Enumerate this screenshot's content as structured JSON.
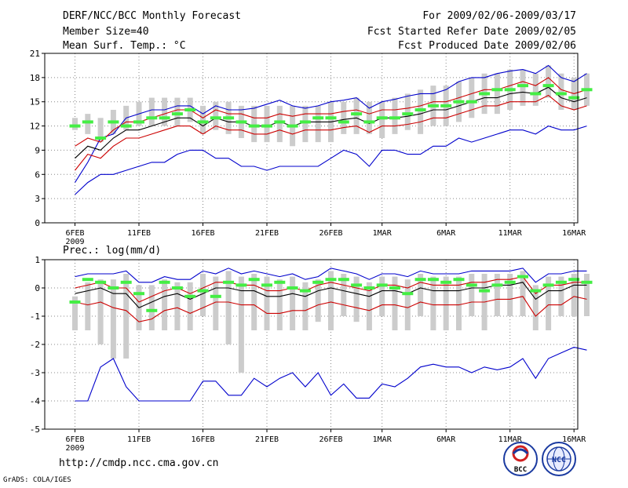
{
  "header": {
    "title": "DERF/NCC/BCC Monthly Forecast",
    "member_size": "Member Size=40",
    "for_range": "For 2009/02/06-2009/03/17",
    "started": "Fcst Started Refer Date 2009/02/05",
    "produced": "Fcst Produced Date 2009/02/06"
  },
  "footer": {
    "url": "http://cmdp.ncc.cma.gov.cn",
    "credit": "GrADS: COLA/IGES",
    "logo_left_text": "BCC",
    "logo_right_text": "NCC"
  },
  "colors": {
    "max_min": "#0000cc",
    "spread": "#cc0000",
    "mean": "#000000",
    "box": "#cccccc",
    "median": "#44ee44",
    "grid": "#888888"
  },
  "chart_data": [
    {
      "type": "line",
      "title": "Mean Surf. Temp.: °C",
      "xlabel": "",
      "ylabel": "",
      "ylim": [
        0,
        21
      ],
      "yticks": [
        0,
        3,
        6,
        9,
        12,
        15,
        18,
        21
      ],
      "x_tick_labels": [
        "6FEB",
        "11FEB",
        "16FEB",
        "21FEB",
        "26FEB",
        "1MAR",
        "6MAR",
        "11MAR",
        "16MAR"
      ],
      "x_tick_days": [
        0,
        5,
        10,
        15,
        20,
        24,
        29,
        34,
        39
      ],
      "x_sublabel": "2009",
      "grid": true,
      "days": 40,
      "series": [
        {
          "name": "max",
          "values": [
            5,
            7.5,
            10.5,
            11,
            13,
            13.5,
            14,
            14,
            14.5,
            14.5,
            13.5,
            14.5,
            14,
            14,
            14.2,
            14.7,
            15.2,
            14.5,
            14.2,
            14.5,
            15,
            15.2,
            15.5,
            14.2,
            15,
            15.3,
            15.7,
            16,
            16,
            16.5,
            17.5,
            18,
            18,
            18.5,
            18.8,
            19,
            18.5,
            19.5,
            18,
            17.5,
            18.5
          ]
        },
        {
          "name": "upper",
          "values": [
            9.5,
            10.5,
            10,
            11.5,
            12.5,
            12.5,
            13,
            13.5,
            14,
            14,
            13,
            14,
            13.5,
            13.5,
            13,
            13,
            13.5,
            13.2,
            13.5,
            13.5,
            13.5,
            13.8,
            14,
            13.5,
            14,
            14,
            14.2,
            14.5,
            15,
            15,
            15.5,
            16,
            16.5,
            16.5,
            17,
            17.5,
            17,
            18,
            16.5,
            16,
            16.5
          ]
        },
        {
          "name": "mean",
          "values": [
            8,
            9.5,
            9,
            10.5,
            11.5,
            11.5,
            12,
            12.5,
            13,
            13,
            12,
            13,
            12.5,
            12.5,
            12,
            12,
            12.5,
            12,
            12.5,
            12.5,
            12.5,
            12.8,
            13,
            12.3,
            13,
            13,
            13.2,
            13.5,
            14,
            14,
            14.5,
            15,
            15.5,
            15.5,
            16,
            16.2,
            16,
            16.8,
            15.5,
            15,
            15.5
          ]
        },
        {
          "name": "lower",
          "values": [
            6.5,
            8.5,
            8,
            9.5,
            10.5,
            10.5,
            11,
            11.5,
            12,
            12,
            11,
            12,
            11.5,
            11.5,
            11,
            11,
            11.5,
            11,
            11.5,
            11.5,
            11.5,
            11.8,
            12,
            11.2,
            12,
            12,
            12.2,
            12.5,
            13,
            13,
            13.5,
            14,
            14.5,
            14.5,
            15,
            15,
            15,
            15.8,
            14.5,
            14,
            14.5
          ]
        },
        {
          "name": "min",
          "values": [
            3.5,
            5,
            6,
            6,
            6.5,
            7,
            7.5,
            7.5,
            8.5,
            9,
            9,
            8,
            8,
            7,
            7,
            6.5,
            7,
            7,
            7,
            7,
            8,
            9,
            8.5,
            7,
            9,
            9,
            8.5,
            8.5,
            9.5,
            9.5,
            10.5,
            10,
            10.5,
            11,
            11.5,
            11.5,
            11,
            12,
            11.5,
            11.5,
            12
          ]
        }
      ],
      "box_low": [
        11.5,
        11,
        10,
        11,
        11.5,
        12,
        12,
        12,
        12,
        12.5,
        11,
        11.5,
        11,
        10.5,
        10,
        10,
        10,
        9.5,
        10,
        10,
        10,
        11,
        11,
        11,
        10.5,
        11,
        11.5,
        11,
        12,
        12,
        12.5,
        13,
        13.5,
        13.5,
        14,
        14.5,
        14.5,
        15.5,
        14,
        14,
        14.5
      ],
      "box_high": [
        13,
        13.5,
        13,
        14,
        14.5,
        15,
        15.5,
        15.5,
        15.5,
        15.5,
        14.5,
        15,
        15,
        14.5,
        14.5,
        14.5,
        14.5,
        14.5,
        14.5,
        14.5,
        15,
        15,
        15.5,
        15,
        15,
        15.5,
        16,
        16.5,
        17,
        17,
        17.5,
        18,
        18.5,
        18.5,
        19,
        19,
        18.5,
        19.5,
        18.5,
        18,
        18.5
      ],
      "median": [
        12,
        12.5,
        10.5,
        12.5,
        12,
        12.5,
        13,
        13,
        13.5,
        14,
        12.5,
        13,
        13,
        12.5,
        12,
        12,
        12.5,
        12,
        12.5,
        13,
        13,
        12.5,
        13.5,
        12.5,
        13,
        13,
        13.5,
        14,
        14.5,
        14.5,
        15,
        15,
        16,
        16.5,
        16.5,
        17,
        16,
        17,
        16,
        15.5,
        16.5
      ]
    },
    {
      "type": "line",
      "title": "Prec.: log(mm/d)",
      "xlabel": "",
      "ylabel": "",
      "ylim": [
        -5,
        1
      ],
      "yticks": [
        -5,
        -4,
        -3,
        -2,
        -1,
        0,
        1
      ],
      "x_tick_labels": [
        "6FEB",
        "11FEB",
        "16FEB",
        "21FEB",
        "26FEB",
        "1MAR",
        "6MAR",
        "11MAR",
        "16MAR"
      ],
      "x_tick_days": [
        0,
        5,
        10,
        15,
        20,
        24,
        29,
        34,
        39
      ],
      "x_sublabel": "2009",
      "grid": true,
      "days": 40,
      "series": [
        {
          "name": "max",
          "values": [
            0.4,
            0.5,
            0.5,
            0.5,
            0.6,
            0.2,
            0.2,
            0.4,
            0.3,
            0.3,
            0.6,
            0.5,
            0.7,
            0.5,
            0.6,
            0.5,
            0.4,
            0.5,
            0.3,
            0.4,
            0.7,
            0.6,
            0.5,
            0.3,
            0.5,
            0.5,
            0.4,
            0.6,
            0.5,
            0.5,
            0.5,
            0.6,
            0.6,
            0.6,
            0.6,
            0.7,
            0.2,
            0.5,
            0.5,
            0.6,
            0.6
          ]
        },
        {
          "name": "upper",
          "values": [
            0,
            0.1,
            0.2,
            0,
            0,
            -0.5,
            -0.3,
            -0.1,
            0,
            -0.2,
            0,
            0.2,
            0.2,
            0.1,
            0.1,
            -0.1,
            -0.1,
            0,
            -0.1,
            0.1,
            0.2,
            0.1,
            0,
            -0.1,
            0.1,
            0.1,
            0,
            0.2,
            0.1,
            0.1,
            0.1,
            0.2,
            0.2,
            0.3,
            0.3,
            0.4,
            -0.2,
            0.1,
            0.1,
            0.2,
            0.2
          ]
        },
        {
          "name": "mean",
          "values": [
            -0.2,
            -0.1,
            0,
            -0.2,
            -0.2,
            -0.7,
            -0.5,
            -0.3,
            -0.2,
            -0.4,
            -0.2,
            0,
            0,
            -0.1,
            -0.1,
            -0.3,
            -0.3,
            -0.2,
            -0.3,
            -0.1,
            0,
            -0.1,
            -0.2,
            -0.3,
            -0.1,
            -0.1,
            -0.2,
            0,
            -0.1,
            -0.1,
            -0.1,
            0,
            0,
            0.1,
            0.1,
            0.2,
            -0.4,
            -0.1,
            -0.1,
            0.1,
            0.1
          ]
        },
        {
          "name": "lower",
          "values": [
            -0.5,
            -0.6,
            -0.5,
            -0.7,
            -0.8,
            -1.2,
            -1.1,
            -0.8,
            -0.7,
            -0.9,
            -0.7,
            -0.5,
            -0.5,
            -0.6,
            -0.6,
            -0.9,
            -0.9,
            -0.8,
            -0.8,
            -0.6,
            -0.5,
            -0.6,
            -0.7,
            -0.8,
            -0.6,
            -0.6,
            -0.7,
            -0.5,
            -0.6,
            -0.6,
            -0.6,
            -0.5,
            -0.5,
            -0.4,
            -0.4,
            -0.3,
            -1.0,
            -0.6,
            -0.6,
            -0.3,
            -0.4
          ]
        },
        {
          "name": "min",
          "values": [
            -4,
            -4,
            -2.8,
            -2.5,
            -3.5,
            -4,
            -4,
            -4,
            -4,
            -4,
            -3.3,
            -3.3,
            -3.8,
            -3.8,
            -3.2,
            -3.5,
            -3.2,
            -3,
            -3.5,
            -3,
            -3.8,
            -3.4,
            -3.9,
            -3.9,
            -3.4,
            -3.5,
            -3.2,
            -2.8,
            -2.7,
            -2.8,
            -2.8,
            -3,
            -2.8,
            -2.9,
            -2.8,
            -2.5,
            -3.2,
            -2.5,
            -2.3,
            -2.1,
            -2.2
          ]
        }
      ],
      "box_low": [
        -1.5,
        -1.5,
        -2,
        -2.5,
        -2.5,
        -1.5,
        -1.5,
        -1.5,
        -1.5,
        -1.5,
        -1,
        -1.5,
        -2,
        -3,
        -1.5,
        -1.5,
        -1.5,
        -1.5,
        -1.5,
        -1.2,
        -1.5,
        -1,
        -1.2,
        -1.5,
        -1,
        -1.5,
        -1.5,
        -1,
        -1.5,
        -1.5,
        -1.5,
        -1,
        -1.5,
        -1,
        -1,
        -1,
        -1.5,
        -1.5,
        -1,
        -1,
        -1
      ],
      "box_high": [
        -0.3,
        0.2,
        0.3,
        0.3,
        0.5,
        0.1,
        0.1,
        0.3,
        0.2,
        0.2,
        0.5,
        0.4,
        0.6,
        0.4,
        0.5,
        0.4,
        0.3,
        0.4,
        0.2,
        0.3,
        0.6,
        0.5,
        0.4,
        0.2,
        0.4,
        0.4,
        0.3,
        0.5,
        0.4,
        0.4,
        0.4,
        0.5,
        0.5,
        0.5,
        0.5,
        0.6,
        0.1,
        0.4,
        0.4,
        0.5,
        0.5
      ],
      "median": [
        -0.5,
        0.3,
        0.2,
        0,
        0.2,
        -0.2,
        -0.8,
        0.2,
        0,
        -0.3,
        -0.1,
        -0.3,
        0.2,
        0.1,
        0.3,
        0.1,
        0.2,
        0,
        -0.1,
        0.2,
        0.3,
        0.3,
        0.1,
        0,
        0.1,
        0,
        -0.2,
        0.3,
        0.3,
        0.2,
        0.3,
        0.1,
        -0.1,
        0.1,
        0.2,
        0.4,
        -0.1,
        0.1,
        0.2,
        0.3,
        0.2
      ]
    }
  ]
}
